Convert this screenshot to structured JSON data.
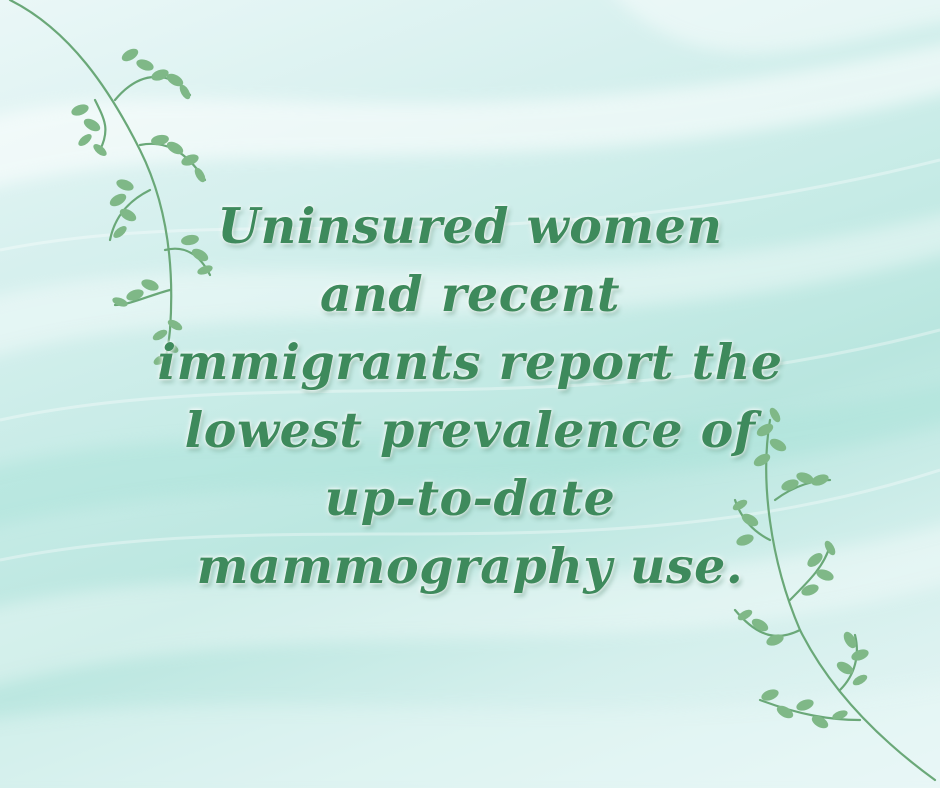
{
  "quote": {
    "lines": [
      "Uninsured women",
      "and recent",
      "immigrants report the",
      "lowest prevalence of",
      "up-to-date",
      "mammography use."
    ]
  },
  "colors": {
    "text": "#3e8a5c",
    "leaf_dark": "#5b9b6e",
    "leaf_light": "#9ccf8f",
    "background": "#c6ebe6"
  },
  "decorations": {
    "top_left": "fern-vine-icon",
    "bottom_right": "fern-vine-icon"
  }
}
